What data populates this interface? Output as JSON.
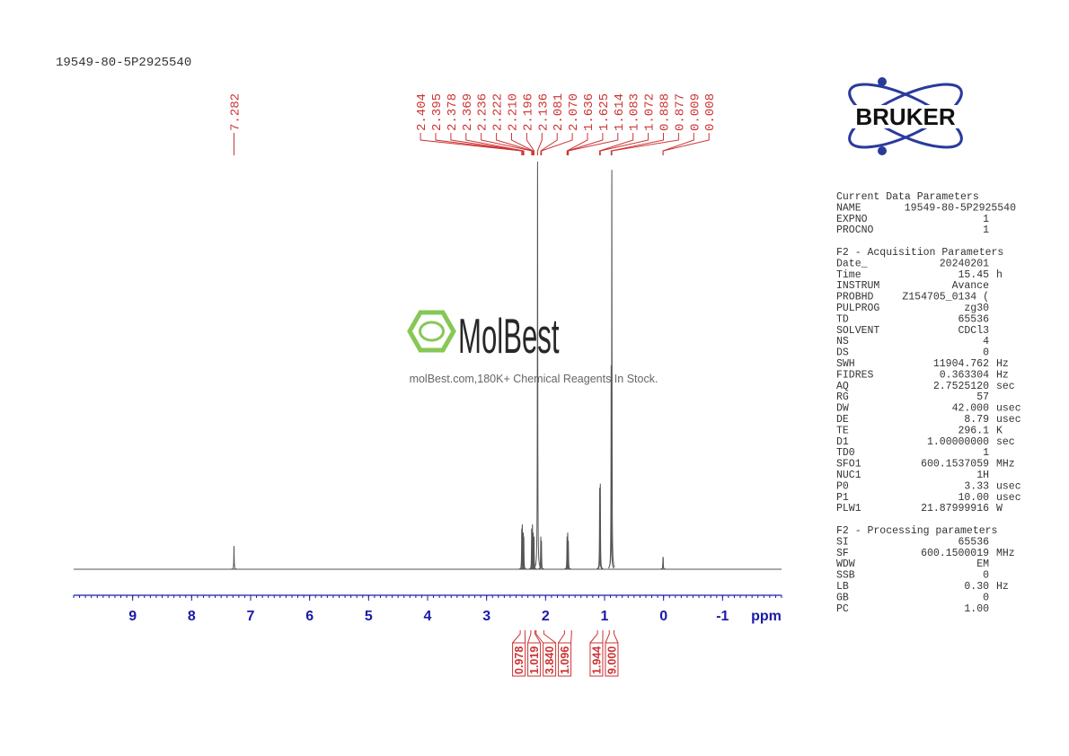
{
  "title": "19549-80-5P2925540",
  "brand": "BRUKER",
  "watermark": {
    "name": "MolBest",
    "tagline": "molBest.com,180K+ Chemical Reagents In Stock."
  },
  "chart_data": {
    "type": "nmr",
    "xlim": [
      10,
      -2
    ],
    "xticks": [
      9,
      8,
      7,
      6,
      5,
      4,
      3,
      2,
      1,
      0,
      -1
    ],
    "x_label": "ppm",
    "minor_step": 0.1,
    "ylim": [
      0,
      100
    ],
    "color": "#555555",
    "label_color": "#cc3333",
    "axis_color": "#1a1aa8",
    "x": [
      7.282,
      2.404,
      2.395,
      2.378,
      2.369,
      2.236,
      2.222,
      2.21,
      2.196,
      2.136,
      2.081,
      2.07,
      1.636,
      1.625,
      1.614,
      1.083,
      1.072,
      0.888,
      0.877,
      0.009,
      0.008
    ],
    "peak_labels": [
      "7.282",
      "2.404",
      "2.395",
      "2.378",
      "2.369",
      "2.236",
      "2.222",
      "2.210",
      "2.196",
      "2.136",
      "2.081",
      "2.070",
      "1.636",
      "1.625",
      "1.614",
      "1.083",
      "1.072",
      "0.888",
      "0.877",
      "0.009",
      "0.008"
    ],
    "values": [
      5.7,
      10,
      11,
      9,
      8,
      10,
      11,
      9,
      8,
      100,
      8,
      7,
      8,
      9,
      7,
      20,
      21,
      50,
      98,
      3,
      3
    ],
    "integral_ranges": [
      [
        2.43,
        2.35
      ],
      [
        2.25,
        2.18
      ],
      [
        2.16,
        2.03
      ],
      [
        1.68,
        1.56
      ],
      [
        1.12,
        1.03
      ],
      [
        0.92,
        0.84
      ]
    ],
    "integral_values": [
      0.978,
      1.019,
      3.84,
      1.096,
      1.944,
      9
    ],
    "integral_labels": [
      "0.978",
      "1.019",
      "3.840",
      "1.096",
      "1.944",
      "9.000"
    ]
  },
  "parameters": [
    {
      "title": "Current Data Parameters",
      "rows": [
        [
          "NAME",
          "19549-80-5P2925540"
        ],
        [
          "EXPNO",
          "1"
        ],
        [
          "PROCNO",
          "1"
        ]
      ]
    },
    {
      "title": "F2 - Acquisition Parameters",
      "rows": [
        [
          "Date_",
          "20240201"
        ],
        [
          "Time",
          "15.45",
          "h"
        ],
        [
          "INSTRUM",
          "Avance"
        ],
        [
          "PROBHD",
          "Z154705_0134 ("
        ],
        [
          "PULPROG",
          "zg30"
        ],
        [
          "TD",
          "65536"
        ],
        [
          "SOLVENT",
          "CDCl3"
        ],
        [
          "NS",
          "4"
        ],
        [
          "DS",
          "0"
        ],
        [
          "SWH",
          "11904.762",
          "Hz"
        ],
        [
          "FIDRES",
          "0.363304",
          "Hz"
        ],
        [
          "AQ",
          "2.7525120",
          "sec"
        ],
        [
          "RG",
          "57"
        ],
        [
          "DW",
          "42.000",
          "usec"
        ],
        [
          "DE",
          "8.79",
          "usec"
        ],
        [
          "TE",
          "296.1",
          "K"
        ],
        [
          "D1",
          "1.00000000",
          "sec"
        ],
        [
          "TD0",
          "1"
        ],
        [
          "SFO1",
          "600.1537059",
          "MHz"
        ],
        [
          "NUC1",
          "1H"
        ],
        [
          "P0",
          "3.33",
          "usec"
        ],
        [
          "P1",
          "10.00",
          "usec"
        ],
        [
          "PLW1",
          "21.87999916",
          "W"
        ]
      ]
    },
    {
      "title": "F2 - Processing parameters",
      "rows": [
        [
          "SI",
          "65536"
        ],
        [
          "SF",
          "600.1500019",
          "MHz"
        ],
        [
          "WDW",
          "EM"
        ],
        [
          "SSB",
          "0"
        ],
        [
          "LB",
          "0.30",
          "Hz"
        ],
        [
          "GB",
          "0"
        ],
        [
          "PC",
          "1.00"
        ]
      ]
    }
  ]
}
